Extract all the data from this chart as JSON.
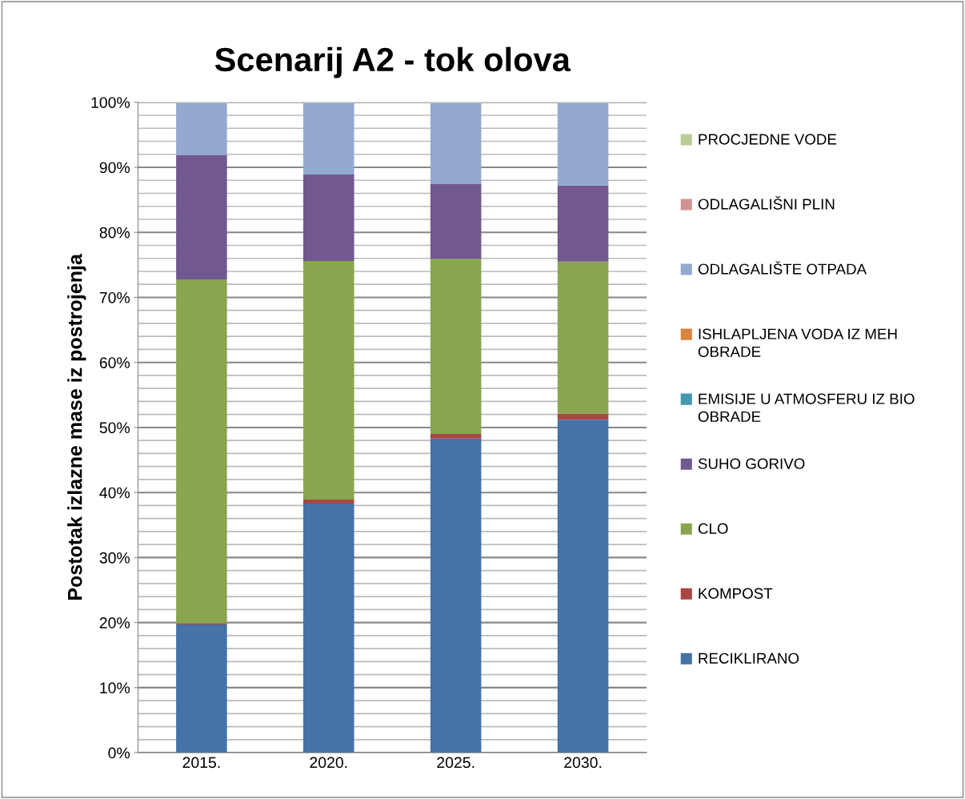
{
  "chart_data": {
    "type": "bar",
    "stacked": true,
    "title": "Scenarij A2 - tok olova",
    "ylabel": "Postotak izlazne mase iz postrojenja",
    "categories": [
      "2015.",
      "2020.",
      "2025.",
      "2030."
    ],
    "series": [
      {
        "name": "RECIKLIRANO",
        "color": "#4572a7",
        "values": [
          19.7,
          38.3,
          48.3,
          51.2
        ]
      },
      {
        "name": "KOMPOST",
        "color": "#aa4643",
        "values": [
          0.2,
          0.6,
          0.7,
          0.9
        ]
      },
      {
        "name": "CLO",
        "color": "#89a54e",
        "values": [
          52.8,
          36.7,
          26.9,
          23.4
        ]
      },
      {
        "name": "SUHO GORIVO",
        "color": "#71588f",
        "values": [
          19.2,
          13.3,
          11.5,
          11.7
        ]
      },
      {
        "name": "EMISIJE U ATMOSFERU IZ BIO OBRADE",
        "color": "#4198af",
        "values": [
          0,
          0,
          0,
          0
        ]
      },
      {
        "name": "ISHLAPLJENA VODA IZ MEH OBRADE",
        "color": "#db843d",
        "values": [
          0,
          0,
          0,
          0
        ]
      },
      {
        "name": "ODLAGALIŠTE OTPADA",
        "color": "#93a9cf",
        "values": [
          8.0,
          11.0,
          12.5,
          12.7
        ]
      },
      {
        "name": "ODLAGALIŠNI PLIN",
        "color": "#d19392",
        "values": [
          0,
          0,
          0,
          0
        ]
      },
      {
        "name": "PROCJEDNE VODE",
        "color": "#b9cd96",
        "values": [
          0.1,
          0.1,
          0.1,
          0.1
        ]
      }
    ],
    "ylim": [
      0,
      100
    ],
    "yticks": [
      {
        "value": 0,
        "label": "0%"
      },
      {
        "value": 10,
        "label": "10%"
      },
      {
        "value": 20,
        "label": "20%"
      },
      {
        "value": 30,
        "label": "30%"
      },
      {
        "value": 40,
        "label": "40%"
      },
      {
        "value": 50,
        "label": "50%"
      },
      {
        "value": 60,
        "label": "60%"
      },
      {
        "value": 70,
        "label": "70%"
      },
      {
        "value": 80,
        "label": "80%"
      },
      {
        "value": 90,
        "label": "90%"
      },
      {
        "value": 100,
        "label": "100%"
      }
    ],
    "grid": "y",
    "legend": "right"
  }
}
